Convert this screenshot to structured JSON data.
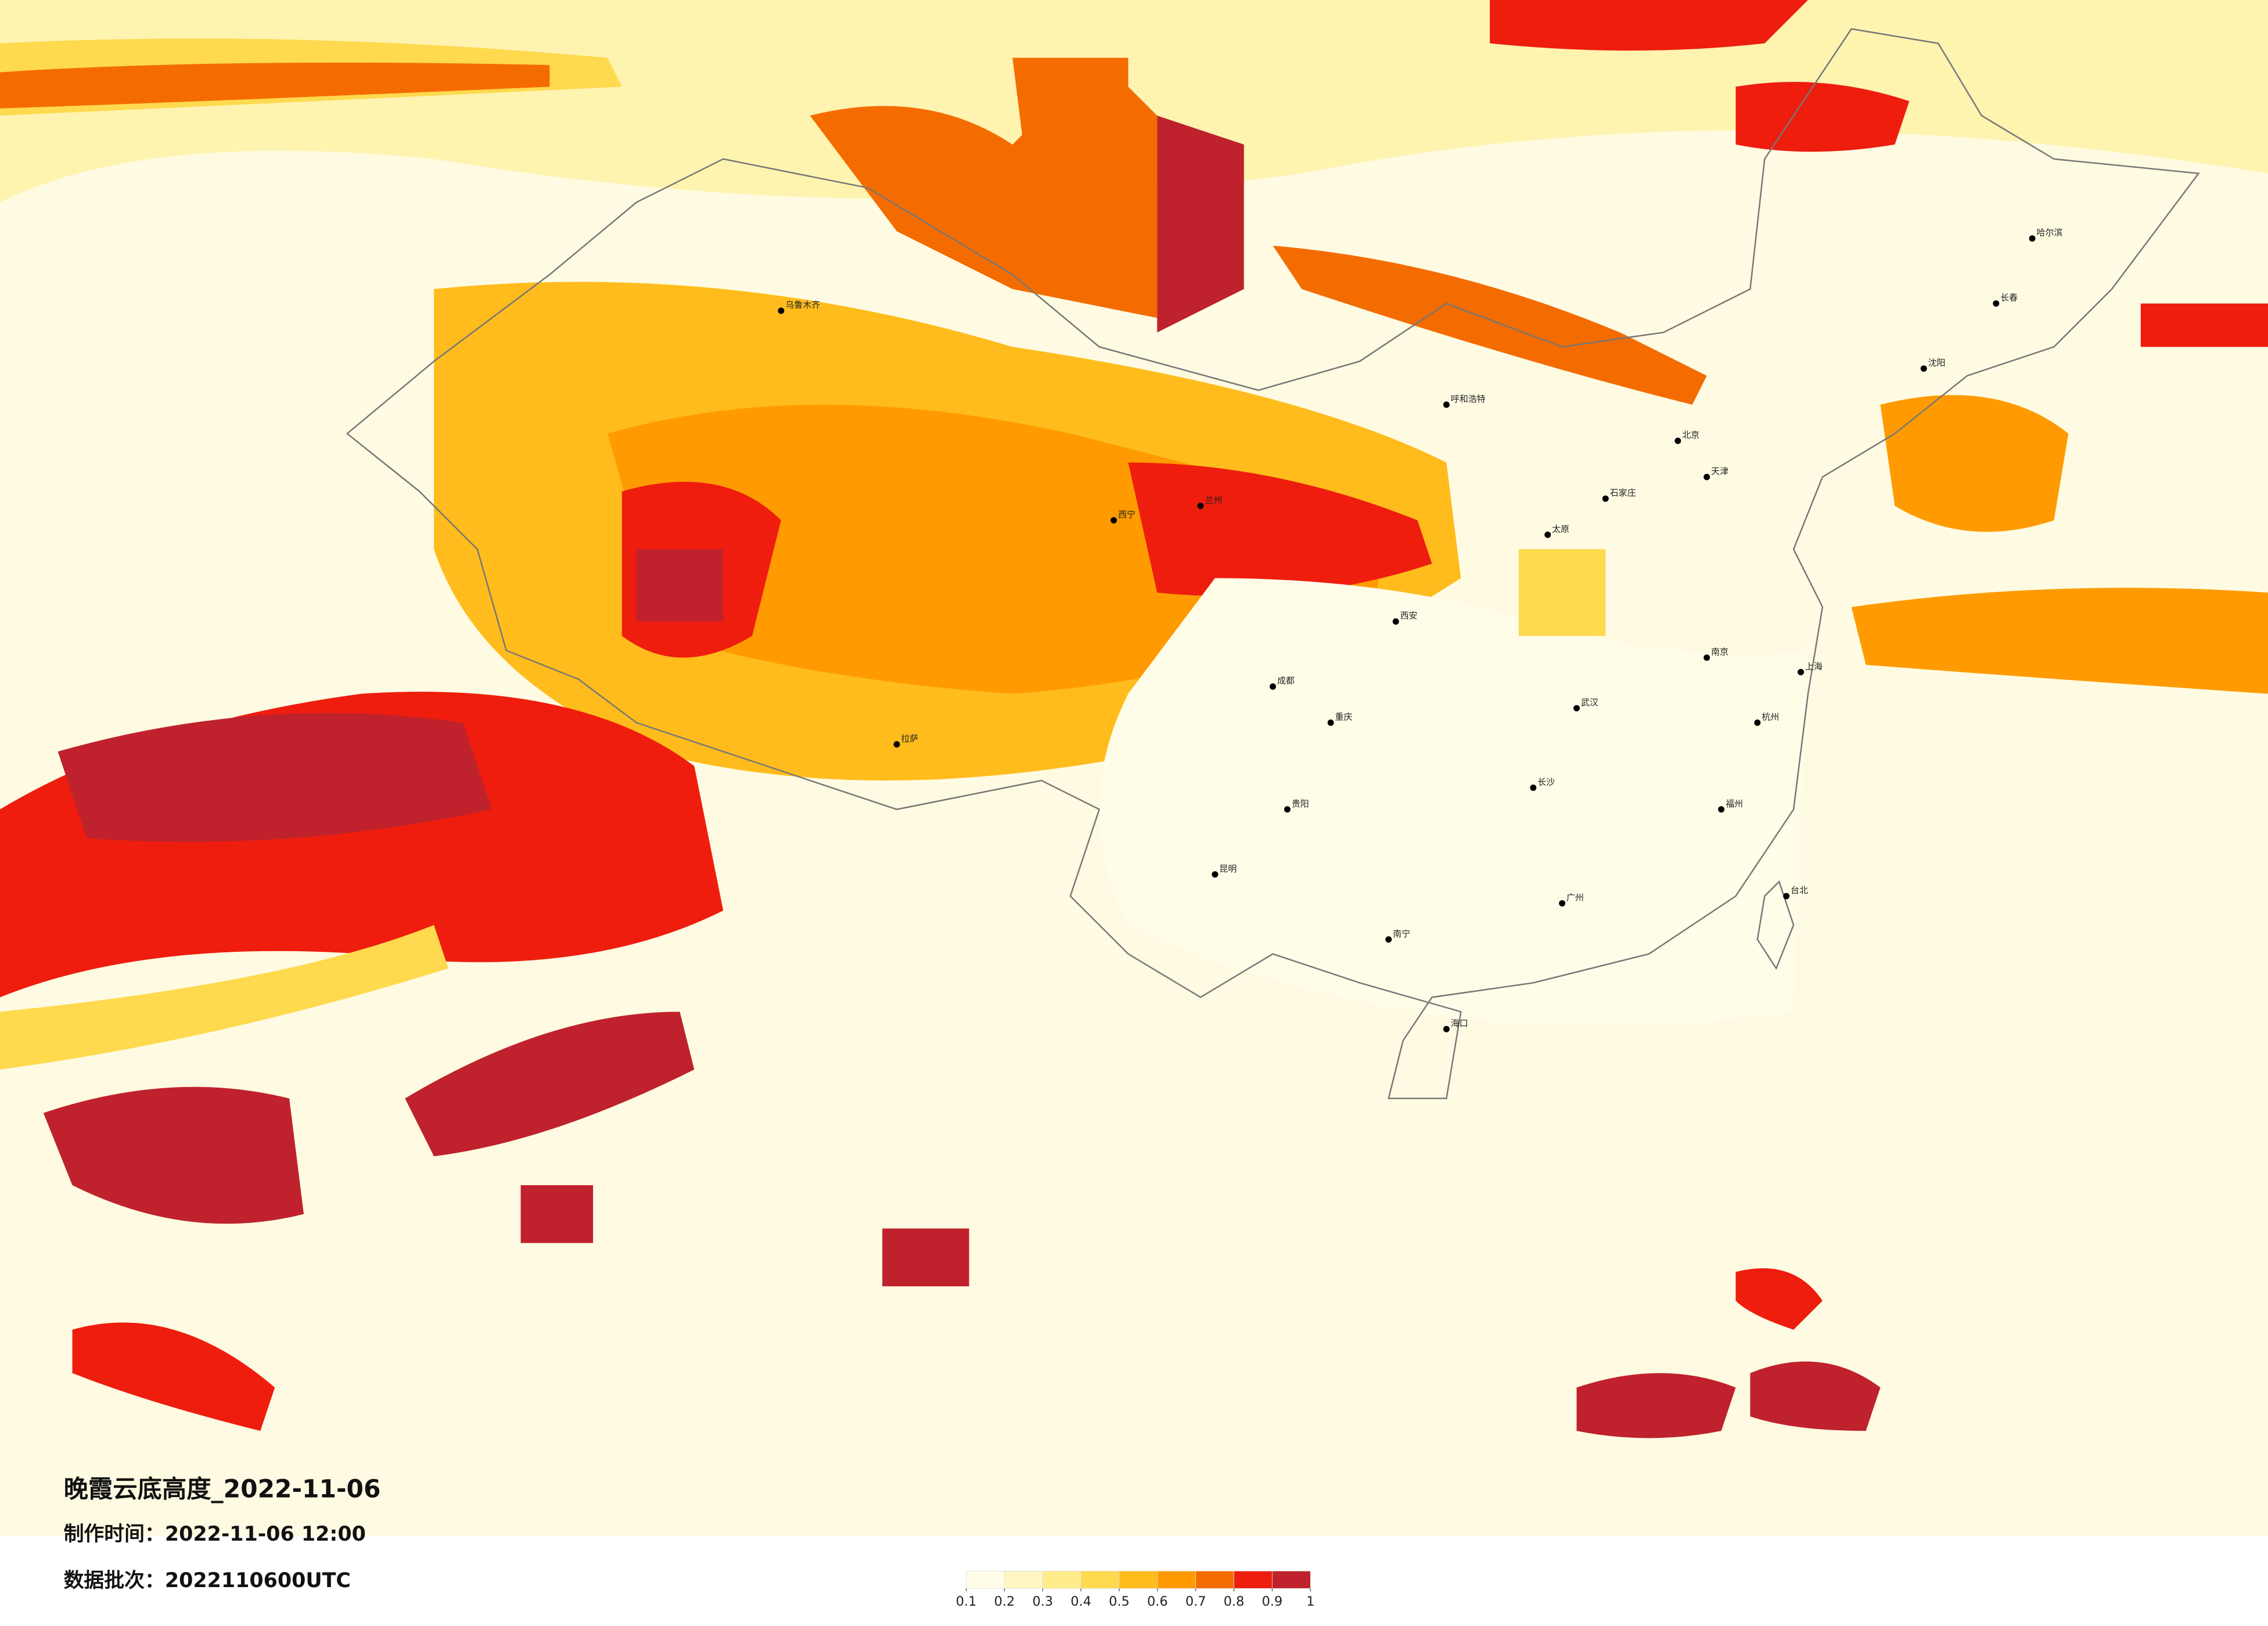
{
  "title": "晚霞云底高度_2022-11-06",
  "production_time": "制作时间：2022-11-06 12:00",
  "data_batch": "数据批次：2022110600UTC",
  "colorbar": {
    "colors": [
      "#fffde8",
      "#fff6c2",
      "#ffed8c",
      "#ffd94e",
      "#ffbc1c",
      "#ff9b00",
      "#f46c00",
      "#ee1d0e",
      "#bf222c"
    ],
    "ticks": [
      0.1,
      0.2,
      0.3,
      0.4,
      0.5,
      0.6,
      0.7,
      0.8,
      0.9,
      1
    ]
  },
  "cities": [
    "哈尔滨",
    "长春",
    "沈阳",
    "北京",
    "天津",
    "石家庄",
    "太原",
    "呼和浩特",
    "西安",
    "兰州",
    "西宁",
    "乌鲁木齐",
    "拉萨",
    "成都",
    "重庆",
    "昆明",
    "贵阳",
    "武汉",
    "长沙",
    "南京",
    "上海",
    "杭州",
    "福州",
    "广州",
    "南宁",
    "海口",
    "台北"
  ]
}
